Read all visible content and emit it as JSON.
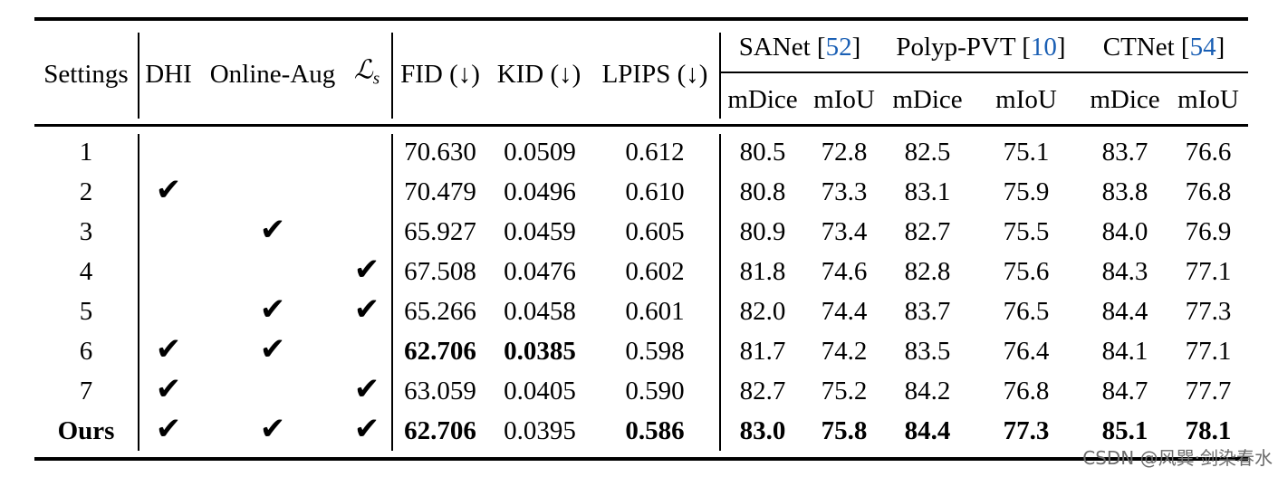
{
  "table": {
    "headers": {
      "settings": "Settings",
      "dhi": "DHI",
      "online_aug": "Online-Aug",
      "ls_symbol": "ℒ",
      "ls_sub": "s",
      "fid": "FID (↓)",
      "kid": "KID (↓)",
      "lpips": "LPIPS (↓)",
      "groups": [
        {
          "name": "SANet",
          "cite": "52"
        },
        {
          "name": "Polyp-PVT",
          "cite": "10"
        },
        {
          "name": "CTNet",
          "cite": "54"
        }
      ],
      "sub": [
        "mDice",
        "mIoU",
        "mDice",
        "mIoU",
        "mDice",
        "mIoU"
      ]
    },
    "check_mark": "✔",
    "rows": [
      {
        "setting": "1",
        "dhi": false,
        "aug": false,
        "ls": false,
        "fid": "70.630",
        "kid": "0.0509",
        "lpips": "0.612",
        "vals": [
          "80.5",
          "72.8",
          "82.5",
          "75.1",
          "83.7",
          "76.6"
        ]
      },
      {
        "setting": "2",
        "dhi": true,
        "aug": false,
        "ls": false,
        "fid": "70.479",
        "kid": "0.0496",
        "lpips": "0.610",
        "vals": [
          "80.8",
          "73.3",
          "83.1",
          "75.9",
          "83.8",
          "76.8"
        ]
      },
      {
        "setting": "3",
        "dhi": false,
        "aug": true,
        "ls": false,
        "fid": "65.927",
        "kid": "0.0459",
        "lpips": "0.605",
        "vals": [
          "80.9",
          "73.4",
          "82.7",
          "75.5",
          "84.0",
          "76.9"
        ]
      },
      {
        "setting": "4",
        "dhi": false,
        "aug": false,
        "ls": true,
        "fid": "67.508",
        "kid": "0.0476",
        "lpips": "0.602",
        "vals": [
          "81.8",
          "74.6",
          "82.8",
          "75.6",
          "84.3",
          "77.1"
        ]
      },
      {
        "setting": "5",
        "dhi": false,
        "aug": true,
        "ls": true,
        "fid": "65.266",
        "kid": "0.0458",
        "lpips": "0.601",
        "vals": [
          "82.0",
          "74.4",
          "83.7",
          "76.5",
          "84.4",
          "77.3"
        ]
      },
      {
        "setting": "6",
        "dhi": true,
        "aug": true,
        "ls": false,
        "fid": "62.706",
        "kid": "0.0385",
        "lpips": "0.598",
        "vals": [
          "81.7",
          "74.2",
          "83.5",
          "76.4",
          "84.1",
          "77.1"
        ],
        "bold": [
          "fid",
          "kid"
        ]
      },
      {
        "setting": "7",
        "dhi": true,
        "aug": false,
        "ls": true,
        "fid": "63.059",
        "kid": "0.0405",
        "lpips": "0.590",
        "vals": [
          "82.7",
          "75.2",
          "84.2",
          "76.8",
          "84.7",
          "77.7"
        ]
      },
      {
        "setting": "Ours",
        "dhi": true,
        "aug": true,
        "ls": true,
        "fid": "62.706",
        "kid": "0.0395",
        "lpips": "0.586",
        "vals": [
          "83.0",
          "75.8",
          "84.4",
          "77.3",
          "85.1",
          "78.1"
        ],
        "bold": [
          "setting",
          "fid",
          "lpips",
          "vals"
        ]
      }
    ]
  },
  "watermark": "CSDN @风巽·剑染春水"
}
